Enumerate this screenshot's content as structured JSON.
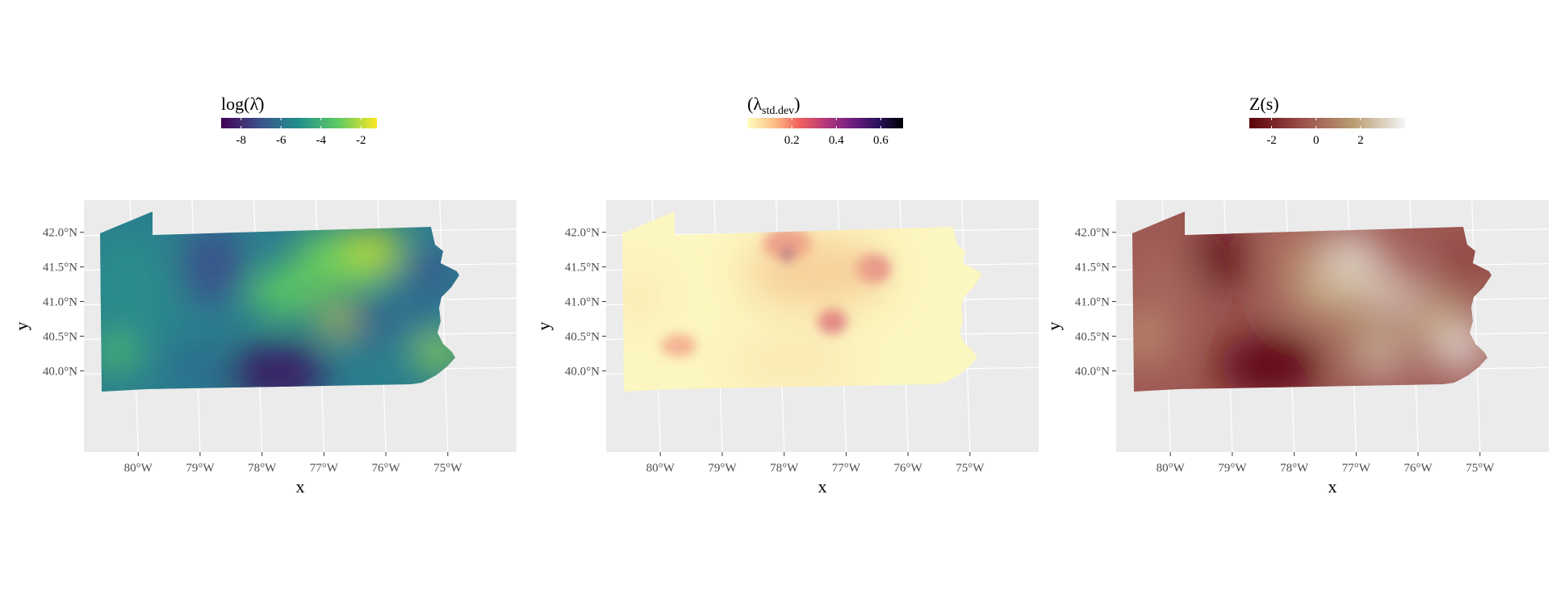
{
  "figure": {
    "panels": [
      {
        "id": "intensity",
        "legend_title": "log(λ̂)",
        "legend_ticks": [
          "-8",
          "-6",
          "-4",
          "-2"
        ],
        "legend_tick_values": [
          -8,
          -6,
          -4,
          -2
        ],
        "legend_range": [
          -9,
          -1.2
        ],
        "colorscale": "viridis",
        "colors": [
          "#440154",
          "#3b528b",
          "#21908c",
          "#5dc963",
          "#fde725"
        ],
        "xlabel": "x",
        "ylabel": "y"
      },
      {
        "id": "stddev",
        "legend_title": "(λ",
        "legend_title_sub": "std.dev",
        "legend_title_close": ")",
        "legend_ticks": [
          "0.2",
          "0.4",
          "0.6"
        ],
        "legend_tick_values": [
          0.2,
          0.4,
          0.6
        ],
        "legend_range": [
          0.0,
          0.7
        ],
        "colorscale": "magma-reversed",
        "colors": [
          "#fcfdbf",
          "#fec287",
          "#f1605d",
          "#b73779",
          "#721f81",
          "#2c115f",
          "#000004"
        ],
        "xlabel": "x",
        "ylabel": "y"
      },
      {
        "id": "zs",
        "legend_title": "Z(s)",
        "legend_ticks": [
          "-2",
          "0",
          "2"
        ],
        "legend_tick_values": [
          -2,
          0,
          2
        ],
        "legend_range": [
          -3,
          4
        ],
        "colorscale": "brown-tan-white",
        "colors": [
          "#5a0009",
          "#9b4e4a",
          "#b99c72",
          "#f5f5f5"
        ],
        "xlabel": "x",
        "ylabel": "y"
      }
    ],
    "x_ticks": [
      "80°W",
      "79°W",
      "78°W",
      "77°W",
      "76°W",
      "75°W"
    ],
    "x_tick_values": [
      -80,
      -79,
      -78,
      -77,
      -76,
      -75
    ],
    "y_ticks": [
      "42.0°N",
      "41.5°N",
      "41.0°N",
      "40.5°N",
      "40.0°N"
    ],
    "y_tick_values": [
      42.0,
      41.5,
      41.0,
      40.5,
      40.0
    ],
    "x_range": [
      -80.75,
      -74.5
    ],
    "y_range": [
      39.6,
      42.45
    ],
    "panel_background": "#ebebeb",
    "gridline_color": "#ffffff",
    "tick_text_color": "#4d4d4d"
  }
}
